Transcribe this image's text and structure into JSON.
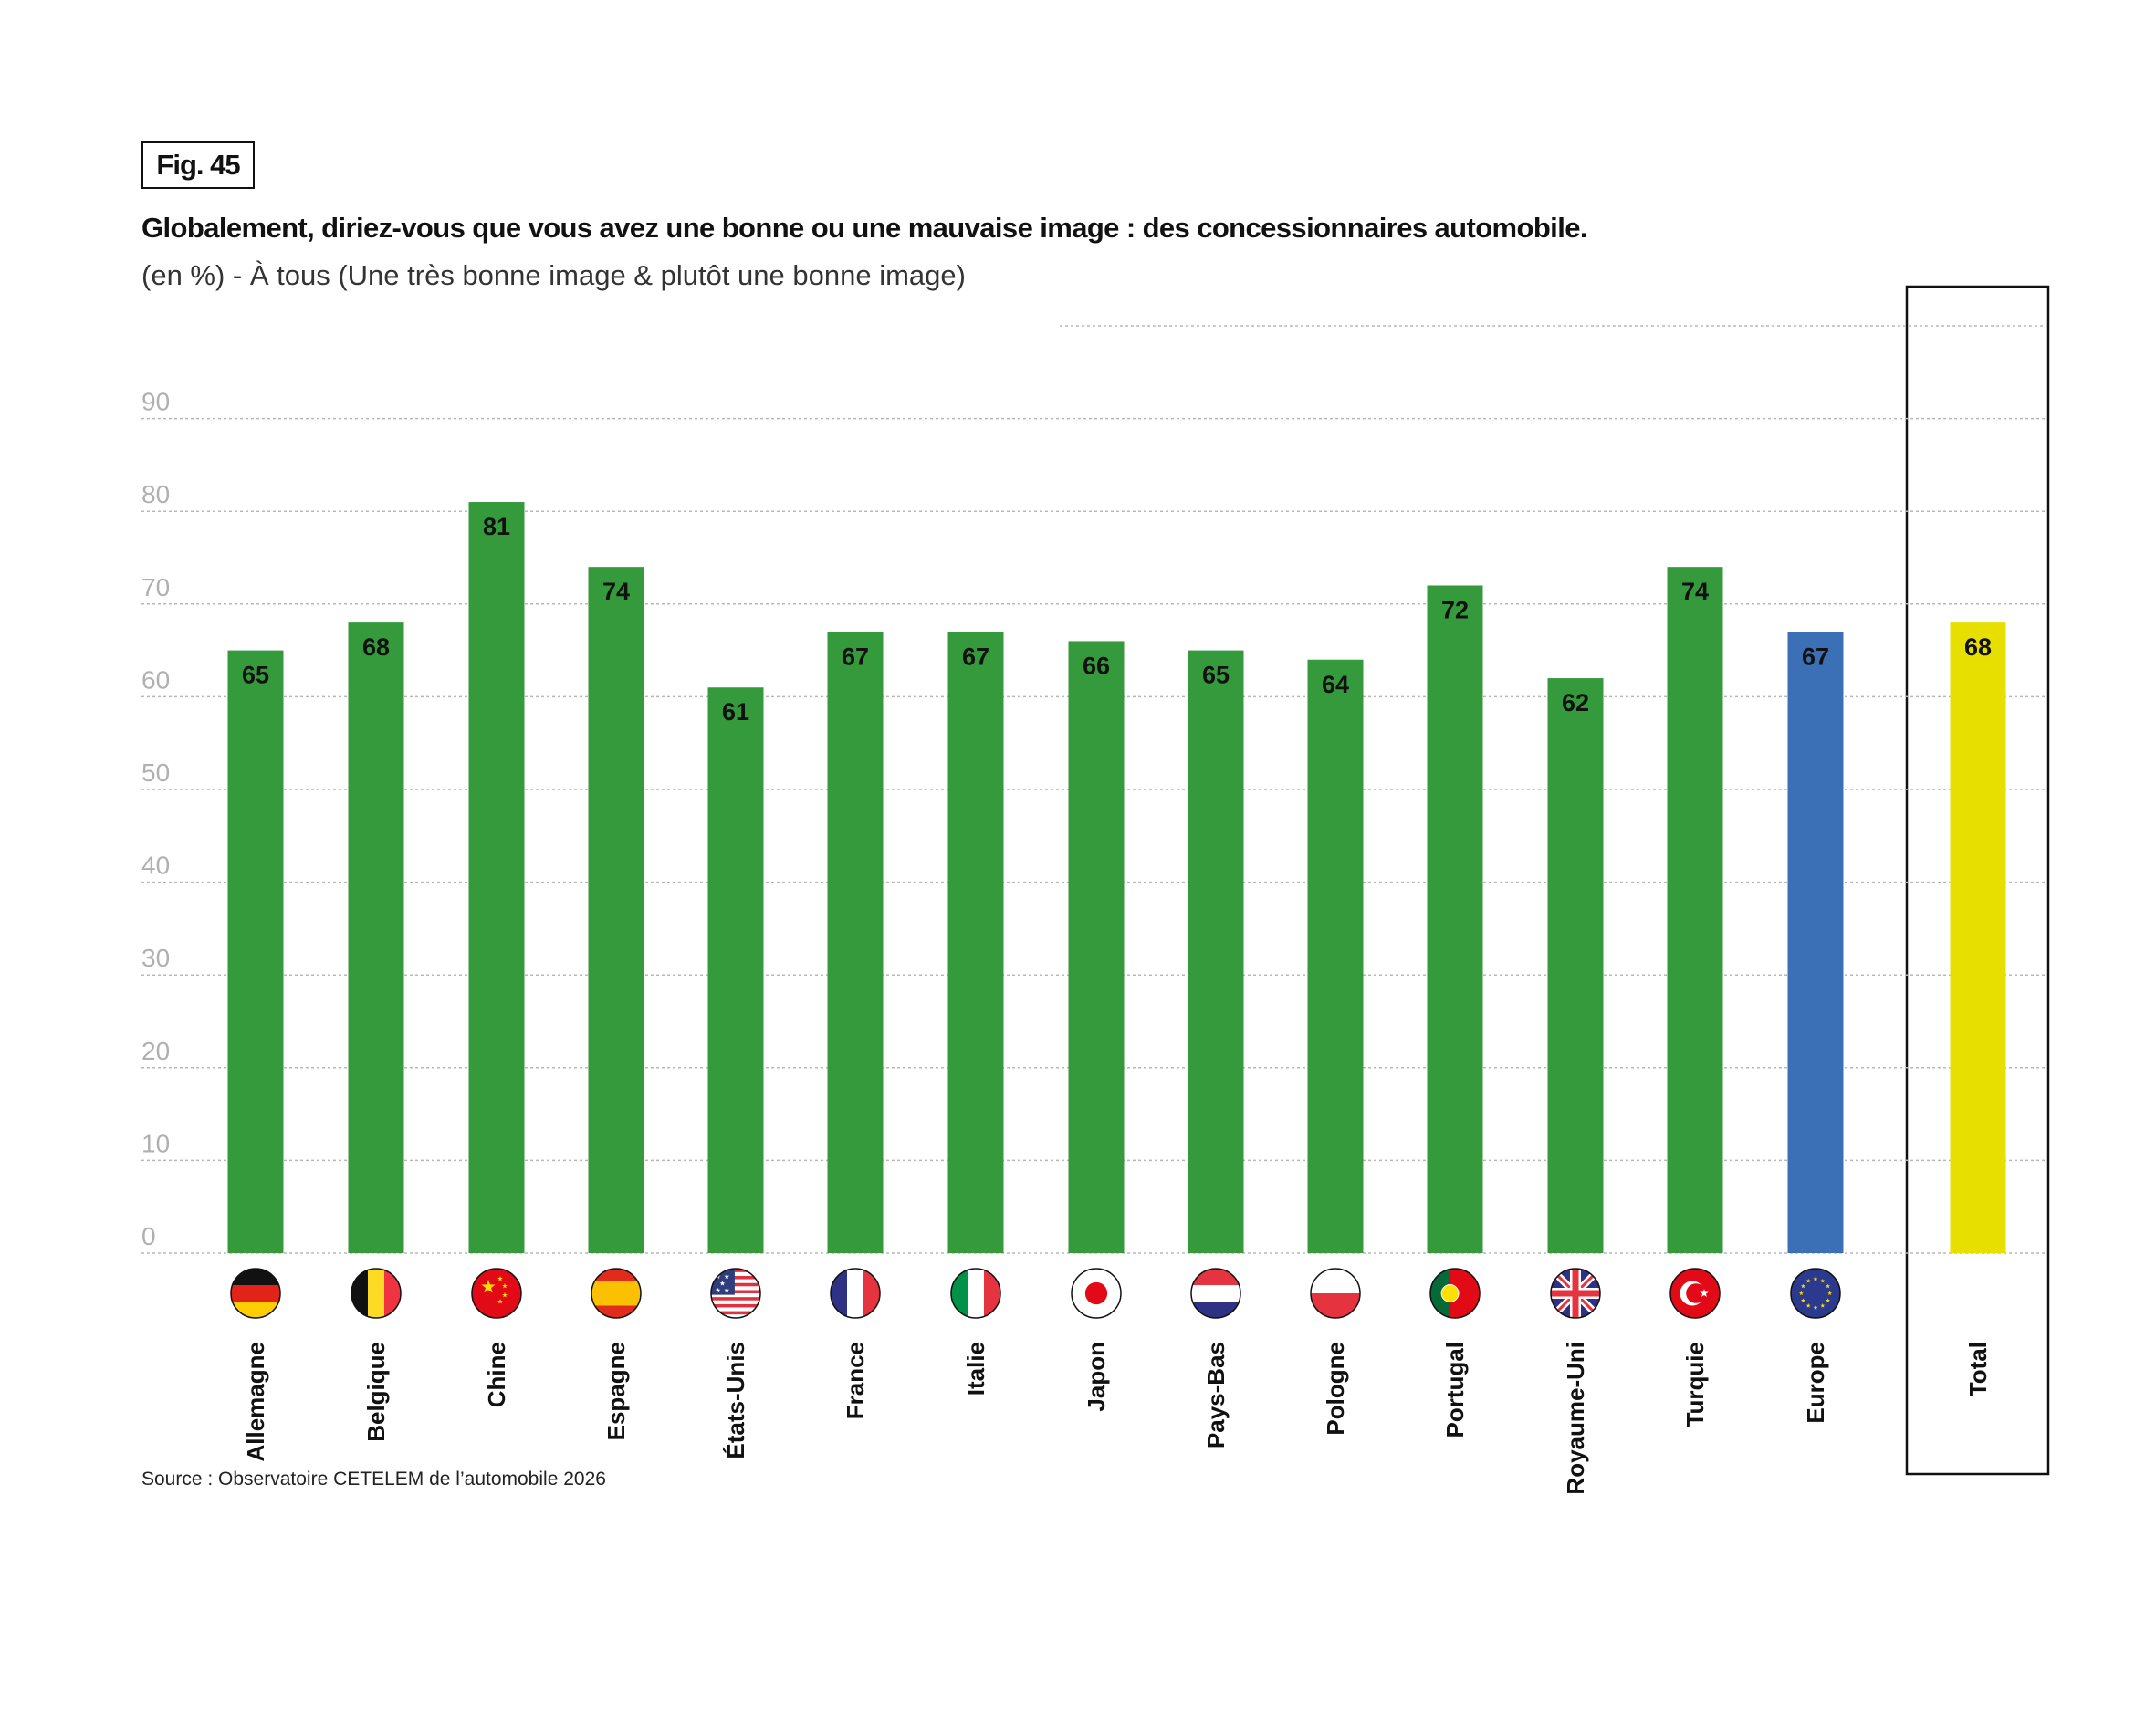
{
  "figure_label": "Fig. 45",
  "source": "Source : Observatoire CETELEM de l’automobile 2026",
  "colors": {
    "country": "#359a3b",
    "europe": "#3b6fb6",
    "total": "#e6df00",
    "grid": "#b8b8b8",
    "tick": "#b0b0b0"
  },
  "chart_data": {
    "type": "bar",
    "title": "Globalement, diriez-vous que vous avez une bonne ou une mauvaise image : des concessionnaires automobile.",
    "subtitle": "(en %) - À tous (Une très bonne image & plutôt une bonne image)",
    "xlabel": "",
    "ylabel": "",
    "ylim": [
      0,
      100
    ],
    "yticks": [
      0,
      10,
      20,
      30,
      40,
      50,
      60,
      70,
      80,
      90
    ],
    "grid": true,
    "categories": [
      "Allemagne",
      "Belgique",
      "Chine",
      "Espagne",
      "États-Unis",
      "France",
      "Italie",
      "Japon",
      "Pays-Bas",
      "Pologne",
      "Portugal",
      "Royaume-Uni",
      "Turquie",
      "Europe",
      "Total"
    ],
    "flags": [
      "de",
      "be",
      "cn",
      "es",
      "us",
      "fr",
      "it",
      "jp",
      "nl",
      "pl",
      "pt",
      "gb",
      "tr",
      "eu",
      ""
    ],
    "values": [
      65,
      68,
      81,
      74,
      61,
      67,
      67,
      66,
      65,
      64,
      72,
      62,
      74,
      67,
      68
    ],
    "kinds": [
      "country",
      "country",
      "country",
      "country",
      "country",
      "country",
      "country",
      "country",
      "country",
      "country",
      "country",
      "country",
      "country",
      "europe",
      "total"
    ]
  }
}
